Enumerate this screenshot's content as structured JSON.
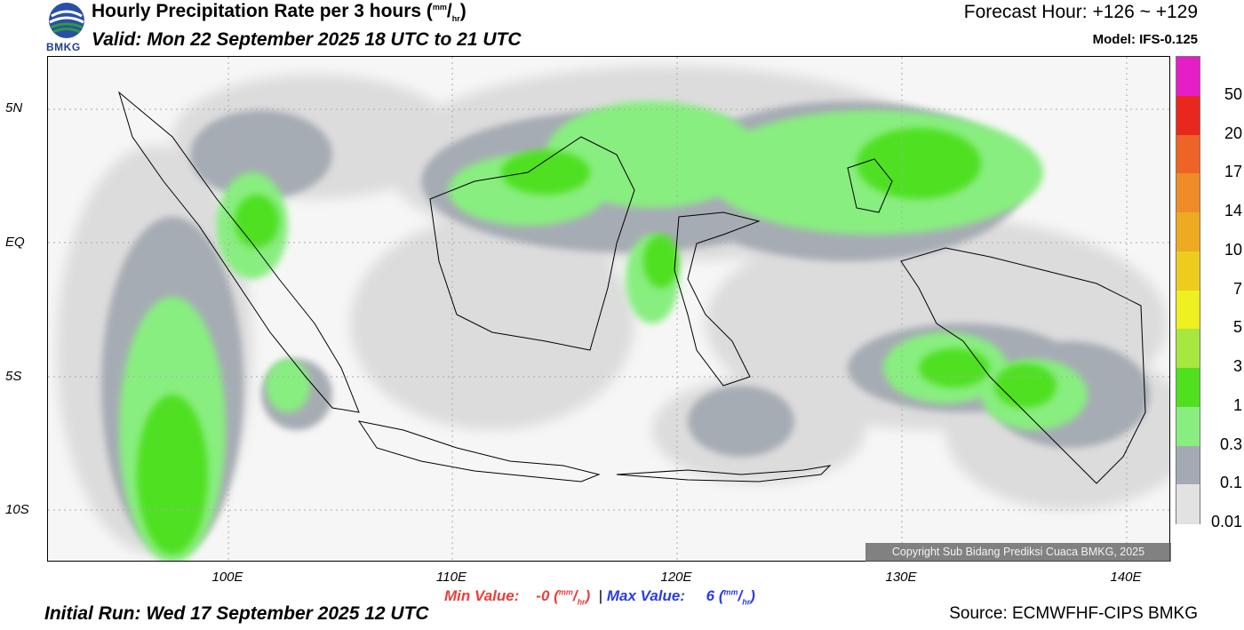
{
  "header": {
    "title_main": "Hourly Precipitation Rate per 3 hours (",
    "unit_top": "mm",
    "unit_slash": "/",
    "unit_bottom": "hr",
    "title_close": ")",
    "valid": "Valid: Mon 22 September 2025 18 UTC to 21 UTC",
    "forecast_hour": "Forecast Hour: +126 ~ +129",
    "model": "Model: IFS-0.125",
    "logo_text": "BMKG"
  },
  "map": {
    "lat_labels": [
      "5N",
      "EQ",
      "5S",
      "10S"
    ],
    "lon_labels": [
      "100E",
      "110E",
      "120E",
      "130E",
      "140E"
    ],
    "copyright": "Copyright Sub Bidang Prediksi Cuaca BMKG, 2025"
  },
  "colorbar": {
    "labels": [
      "50",
      "20",
      "17",
      "14",
      "10",
      "7",
      "5",
      "3",
      "1",
      "0.3",
      "0.1",
      "0.01"
    ],
    "colors": [
      "#e61ec8",
      "#e8281e",
      "#ee6426",
      "#f08c28",
      "#eeaa20",
      "#eecc1e",
      "#eef020",
      "#a8e640",
      "#50e020",
      "#88ee80",
      "#a4aab4",
      "#e2e2e2"
    ]
  },
  "footer": {
    "min_label": "Min Value:",
    "min_value": "-0",
    "max_label": "Max Value:",
    "max_value": "6",
    "separator": "|",
    "unit_top": "mm",
    "unit_slash": "/",
    "unit_bottom": "hr",
    "initial_run": "Initial Run: Wed 17 September 2025 12 UTC",
    "source": "Source: ECMWFHF-CIPS BMKG"
  }
}
